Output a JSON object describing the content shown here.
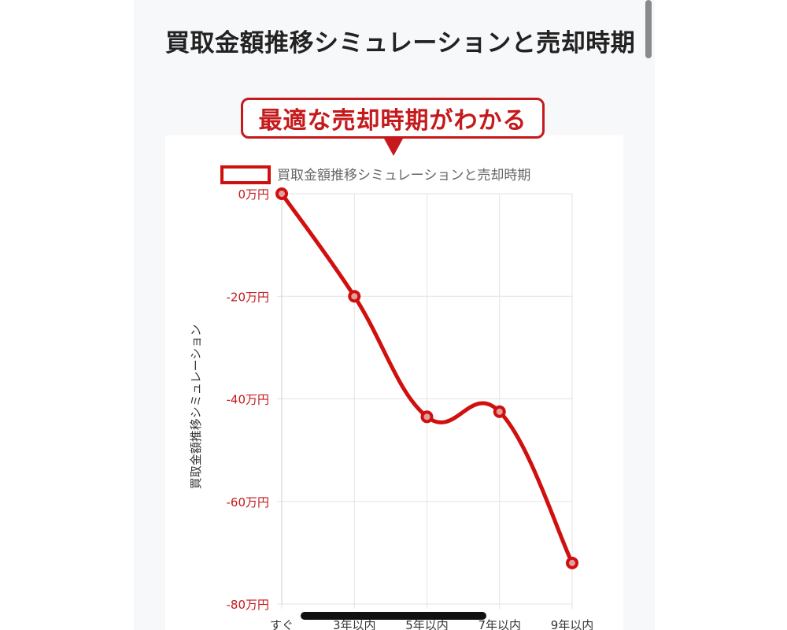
{
  "page": {
    "title": "買取金額推移シミュレーションと売却時期",
    "callout": "最適な売却時期がわかる"
  },
  "colors": {
    "accent": "#d0100f",
    "callout": "#c5191b",
    "grid": "#e3e3e3",
    "tick_text": "#c5191b",
    "label_text": "#333333"
  },
  "chart_data": {
    "type": "line",
    "title": "",
    "legend": {
      "entries": [
        "買取金額推移シミュレーションと売却時期"
      ],
      "position": "top"
    },
    "categories": [
      "すぐ",
      "3年以内",
      "5年以内",
      "7年以内",
      "9年以内"
    ],
    "series": [
      {
        "name": "買取金額推移シミュレーションと売却時期",
        "values": [
          0,
          -20,
          -43.5,
          -42.5,
          -72
        ]
      }
    ],
    "ylabel": "買取金額推移シミュレーション",
    "xlabel": "",
    "ylim": [
      -80,
      0
    ],
    "yticks": [
      {
        "value": 0,
        "label": "0万円"
      },
      {
        "value": -20,
        "label": "-20万円"
      },
      {
        "value": -40,
        "label": "-40万円"
      },
      {
        "value": -60,
        "label": "-60万円"
      },
      {
        "value": -80,
        "label": "-80万円"
      }
    ],
    "grid": true,
    "curve": "smooth"
  }
}
